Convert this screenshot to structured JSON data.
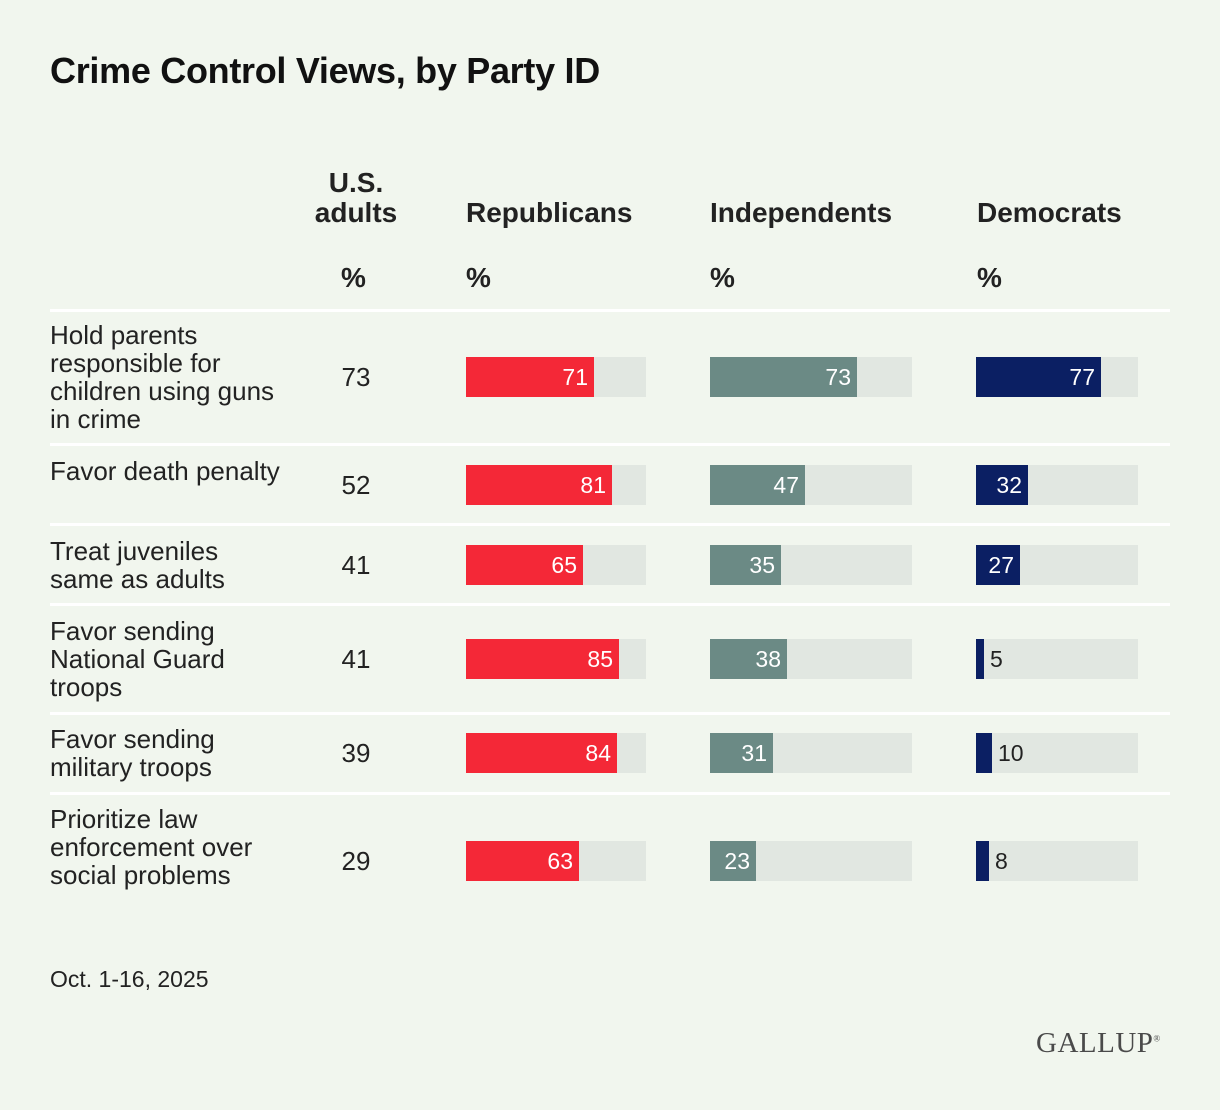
{
  "title": "Crime Control Views, by Party ID",
  "columns": {
    "us_adults": {
      "line1": "U.S.",
      "line2": "adults",
      "unit": "%"
    },
    "republicans": {
      "label": "Republicans",
      "unit": "%"
    },
    "independents": {
      "label": "Independents",
      "unit": "%"
    },
    "democrats": {
      "label": "Democrats",
      "unit": "%"
    }
  },
  "colors": {
    "republicans": "#f42837",
    "independents": "#6b8a85",
    "democrats": "#0b1f63",
    "track": "#e1e7e1"
  },
  "chart_data": {
    "type": "bar",
    "title": "Crime Control Views, by Party ID",
    "unit": "%",
    "xlim": [
      0,
      100
    ],
    "categories": [
      "Hold parents responsible for children using guns in crime",
      "Favor death penalty",
      "Treat juveniles same as adults",
      "Favor sending National Guard troops",
      "Favor sending military troops",
      "Prioritize law enforcement over social problems"
    ],
    "series": [
      {
        "name": "U.S. adults",
        "values": [
          73,
          52,
          41,
          41,
          39,
          29
        ]
      },
      {
        "name": "Republicans",
        "values": [
          71,
          81,
          65,
          85,
          84,
          63
        ]
      },
      {
        "name": "Independents",
        "values": [
          73,
          47,
          35,
          38,
          31,
          23
        ]
      },
      {
        "name": "Democrats",
        "values": [
          77,
          32,
          27,
          5,
          10,
          8
        ]
      }
    ]
  },
  "footer": {
    "date": "Oct. 1-16, 2025",
    "logo": "GALLUP"
  }
}
